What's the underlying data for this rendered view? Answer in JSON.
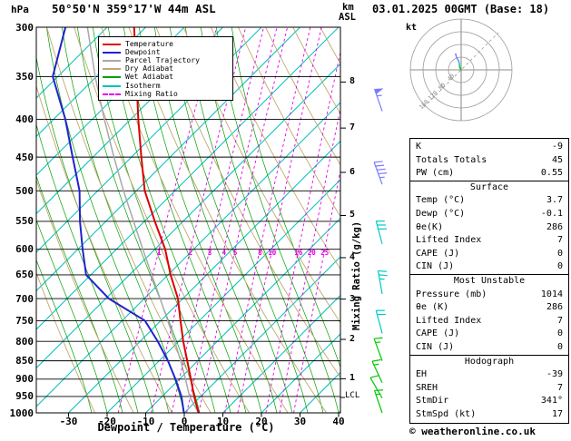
{
  "header": {
    "pressure_unit": "hPa",
    "station": "50°50'N 359°17'W 44m ASL",
    "altitude_unit_km": "km",
    "altitude_unit_asl": "ASL",
    "datetime": "03.01.2025 00GMT (Base: 18)"
  },
  "legend": {
    "items": [
      {
        "label": "Temperature",
        "color": "#dd0000",
        "dashed": false
      },
      {
        "label": "Dewpoint",
        "color": "#2222cc",
        "dashed": false
      },
      {
        "label": "Parcel Trajectory",
        "color": "#a8a8a8",
        "dashed": false
      },
      {
        "label": "Dry Adiabat",
        "color": "#c0a870",
        "dashed": false
      },
      {
        "label": "Wet Adiabat",
        "color": "#00a000",
        "dashed": false
      },
      {
        "label": "Isotherm",
        "color": "#00c0c0",
        "dashed": false
      },
      {
        "label": "Mixing Ratio",
        "color": "#e800e8",
        "dashed": true
      }
    ]
  },
  "axes": {
    "pressure_ticks": [
      300,
      350,
      400,
      450,
      500,
      550,
      600,
      650,
      700,
      750,
      800,
      850,
      900,
      950,
      1000
    ],
    "temp_ticks": [
      -30,
      -20,
      -10,
      0,
      10,
      20,
      30,
      40
    ],
    "km_ticks": [
      8,
      7,
      6,
      5,
      4,
      3,
      2,
      1
    ],
    "xlabel": "Dewpoint / Temperature (°C)",
    "mixing_axis_label": "Mixing Ratio (g/kg)",
    "lcl_label": "LCL",
    "mixing_ratio_values": [
      1,
      2,
      3,
      4,
      5,
      8,
      10,
      16,
      20,
      25
    ]
  },
  "colors": {
    "temperature": "#dd0000",
    "dewpoint": "#2222cc",
    "parcel": "#a8a8a8",
    "dry_adiabat": "#c0a870",
    "wet_adiabat": "#00a000",
    "isotherm": "#00c0c0",
    "mixing_ratio": "#e800e8",
    "isobar": "#000000"
  },
  "chart_data": {
    "type": "line",
    "subtype": "skew-t-log-p-sounding",
    "title": "50°50'N 359°17'W 44m ASL  03.01.2025 00GMT (Base: 18)",
    "x_axis": {
      "label": "Dewpoint / Temperature (°C)",
      "range": [
        -30,
        40
      ]
    },
    "y_axis": {
      "label": "hPa",
      "range": [
        1000,
        300
      ],
      "scale": "log"
    },
    "pressures_hpa": [
      1000,
      950,
      900,
      850,
      800,
      750,
      700,
      650,
      600,
      550,
      500,
      450,
      400,
      350,
      300
    ],
    "series": [
      {
        "name": "Temperature",
        "color": "#dd0000",
        "values_c": [
          3.7,
          0.9,
          -1.7,
          -4.5,
          -7.5,
          -10.3,
          -13.2,
          -17.5,
          -21.5,
          -27.0,
          -32.7,
          -37.0,
          -41.6,
          -46.4,
          -52.0
        ]
      },
      {
        "name": "Dewpoint",
        "color": "#2222cc",
        "values_c": [
          -0.1,
          -2.4,
          -5.7,
          -9.5,
          -14.1,
          -19.5,
          -31.1,
          -39.4,
          -42.9,
          -46.4,
          -49.6,
          -54.8,
          -60.5,
          -68.1,
          -69.8
        ]
      },
      {
        "name": "Parcel Trajectory",
        "color": "#a8a8a8",
        "values_c": [
          3.7,
          -0.3,
          -3.1,
          -6.2,
          -9.7,
          -13.6,
          -17.8,
          -22.4,
          -27.3,
          -32.5,
          -38.2,
          -44.1,
          -50.4,
          -57.1,
          -64.1
        ]
      }
    ]
  },
  "wind_barbs": [
    {
      "pressure_hpa": 390,
      "speed_kt": 55,
      "dir_deg": 341,
      "color": "#7a7aff"
    },
    {
      "pressure_hpa": 490,
      "speed_kt": 45,
      "dir_deg": 340,
      "color": "#7a7aff"
    },
    {
      "pressure_hpa": 590,
      "speed_kt": 30,
      "dir_deg": 345,
      "color": "#00c8c8"
    },
    {
      "pressure_hpa": 690,
      "speed_kt": 25,
      "dir_deg": 350,
      "color": "#00c8c8"
    },
    {
      "pressure_hpa": 780,
      "speed_kt": 20,
      "dir_deg": 345,
      "color": "#00c8c8"
    },
    {
      "pressure_hpa": 850,
      "speed_kt": 15,
      "dir_deg": 340,
      "color": "#00c800"
    },
    {
      "pressure_hpa": 910,
      "speed_kt": 15,
      "dir_deg": 335,
      "color": "#00c800"
    },
    {
      "pressure_hpa": 955,
      "speed_kt": 10,
      "dir_deg": 330,
      "color": "#00c800"
    },
    {
      "pressure_hpa": 1000,
      "speed_kt": 15,
      "dir_deg": 341,
      "color": "#00c800"
    }
  ],
  "hodograph": {
    "unit_label": "kt",
    "ring_kt": [
      40,
      80,
      120,
      160
    ],
    "ring_labels": [
      "40",
      "80",
      "120",
      "160"
    ],
    "trace": [
      {
        "dir_deg": 330,
        "speed_kt": 10,
        "color": "#00c800"
      },
      {
        "dir_deg": 340,
        "speed_kt": 15,
        "color": "#00c800"
      },
      {
        "dir_deg": 345,
        "speed_kt": 25,
        "color": "#00c8c8"
      },
      {
        "dir_deg": 340,
        "speed_kt": 45,
        "color": "#7a7aff"
      },
      {
        "dir_deg": 341,
        "speed_kt": 55,
        "color": "#7a7aff"
      }
    ]
  },
  "table": {
    "sections": [
      {
        "header": null,
        "rows": [
          [
            "K",
            "-9"
          ],
          [
            "Totals Totals",
            "45"
          ],
          [
            "PW (cm)",
            "0.55"
          ]
        ]
      },
      {
        "header": "Surface",
        "rows": [
          [
            "Temp (°C)",
            "3.7"
          ],
          [
            "Dewp (°C)",
            "-0.1"
          ],
          [
            "θe(K)",
            "286"
          ],
          [
            "Lifted Index",
            "7"
          ],
          [
            "CAPE (J)",
            "0"
          ],
          [
            "CIN (J)",
            "0"
          ]
        ]
      },
      {
        "header": "Most Unstable",
        "rows": [
          [
            "Pressure (mb)",
            "1014"
          ],
          [
            "θe (K)",
            "286"
          ],
          [
            "Lifted Index",
            "7"
          ],
          [
            "CAPE (J)",
            "0"
          ],
          [
            "CIN (J)",
            "0"
          ]
        ]
      },
      {
        "header": "Hodograph",
        "rows": [
          [
            "EH",
            "-39"
          ],
          [
            "SREH",
            "7"
          ],
          [
            "StmDir",
            "341°"
          ],
          [
            "StmSpd (kt)",
            "17"
          ]
        ]
      }
    ]
  },
  "footer": {
    "copyright": "© weatheronline.co.uk"
  }
}
